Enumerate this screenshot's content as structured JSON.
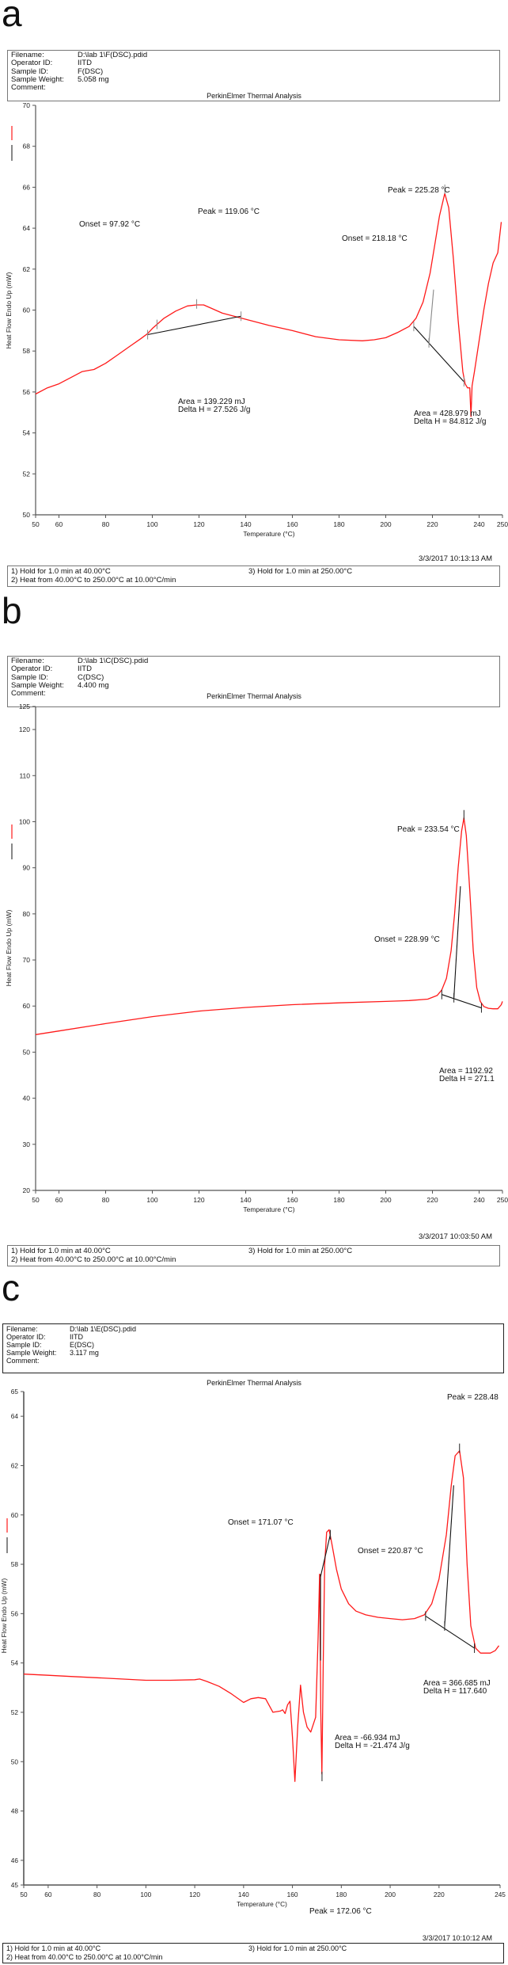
{
  "panels": [
    {
      "letter": "a",
      "info": [
        {
          "key": "Filename:",
          "value": "D:\\lab 1\\F(DSC).pdid"
        },
        {
          "key": "Operator ID:",
          "value": "IITD"
        },
        {
          "key": "Sample ID:",
          "value": "F(DSC)"
        },
        {
          "key": "Sample Weight:",
          "value": "5.058 mg"
        },
        {
          "key": "Comment:",
          "value": ""
        }
      ],
      "title": "PerkinElmer Thermal Analysis",
      "timestamp": "3/3/2017 10:13:13 AM",
      "method": {
        "step1": "1)  Hold for 1.0 min at 40.00°C",
        "step2": "2)  Heat from 40.00°C to 250.00°C at 10.00°C/min",
        "step3": "3)    Hold for 1.0 min at 250.00°C"
      }
    },
    {
      "letter": "b",
      "info": [
        {
          "key": "Filename:",
          "value": "D:\\lab 1\\C(DSC).pdid"
        },
        {
          "key": "Operator ID:",
          "value": "IITD"
        },
        {
          "key": "Sample ID:",
          "value": "C(DSC)"
        },
        {
          "key": "Sample Weight:",
          "value": "4.400 mg"
        },
        {
          "key": "Comment:",
          "value": ""
        }
      ],
      "title": "PerkinElmer Thermal Analysis",
      "timestamp": "3/3/2017 10:03:50 AM",
      "method": {
        "step1": "1)  Hold for 1.0 min at 40.00°C",
        "step2": "2)  Heat from 40.00°C to 250.00°C at 10.00°C/min",
        "step3": "3)    Hold for 1.0 min at 250.00°C"
      }
    },
    {
      "letter": "c",
      "info": [
        {
          "key": "Filename:",
          "value": "D:\\lab 1\\E(DSC).pdid"
        },
        {
          "key": "Operator ID:",
          "value": "IITD"
        },
        {
          "key": "Sample ID:",
          "value": "E(DSC)"
        },
        {
          "key": "Sample Weight:",
          "value": "3.117 mg"
        },
        {
          "key": "Comment:",
          "value": ""
        }
      ],
      "title": "PerkinElmer Thermal Analysis",
      "timestamp": "3/3/2017 10:10:12 AM",
      "method": {
        "step1": "1)  Hold for 1.0 min at 40.00°C",
        "step2": "2)  Heat from 40.00°C to 250.00°C at 10.00°C/min",
        "step3": "3)    Hold for 1.0 min at 250.00°C"
      }
    }
  ],
  "colors": {
    "curve": "#ff1a1a",
    "baseline": "#111111",
    "axis": "#555555",
    "tick_marker": "#888888"
  },
  "chart_data": [
    {
      "type": "line",
      "title": "PerkinElmer Thermal Analysis",
      "xlabel": "Temperature (°C)",
      "ylabel": "Heat Flow Endo Up (mW)",
      "xlim": [
        50,
        250
      ],
      "ylim": [
        50,
        70
      ],
      "xticks": [
        50,
        60,
        80,
        100,
        120,
        140,
        160,
        180,
        200,
        220,
        240,
        250
      ],
      "yticks": [
        50,
        52,
        54,
        56,
        58,
        60,
        62,
        64,
        66,
        68,
        70
      ],
      "series": [
        {
          "name": "Heat Flow",
          "x": [
            50,
            55,
            60,
            65,
            70,
            75,
            80,
            85,
            90,
            95,
            98,
            100,
            105,
            110,
            115,
            119,
            122,
            125,
            130,
            135,
            140,
            145,
            150,
            160,
            170,
            180,
            190,
            195,
            200,
            205,
            210,
            213,
            216,
            219,
            221,
            223,
            225.3,
            227,
            229,
            231,
            233,
            234,
            235,
            236,
            236.5,
            237,
            238,
            240,
            242,
            244,
            246,
            248,
            249.5
          ],
          "values": [
            55.9,
            56.2,
            56.4,
            56.7,
            57.0,
            57.1,
            57.4,
            57.8,
            58.2,
            58.6,
            58.85,
            59.1,
            59.6,
            59.95,
            60.2,
            60.25,
            60.25,
            60.1,
            59.85,
            59.7,
            59.55,
            59.4,
            59.25,
            59.0,
            58.7,
            58.55,
            58.5,
            58.55,
            58.65,
            58.9,
            59.2,
            59.6,
            60.4,
            61.8,
            63.2,
            64.6,
            65.7,
            65.0,
            62.5,
            59.5,
            57.0,
            56.4,
            56.2,
            56.2,
            54.8,
            56.3,
            57.0,
            58.5,
            60.0,
            61.3,
            62.3,
            62.8,
            64.3
          ]
        }
      ],
      "annotations": [
        {
          "text": "Onset = 97.92 °C",
          "x": 97.92
        },
        {
          "text": "Peak = 119.06 °C",
          "x": 119.06
        },
        {
          "text": "Area = 139.229 mJ",
          "line2": "Delta H = 27.526 J/g"
        },
        {
          "text": "Onset = 218.18 °C",
          "x": 218.18
        },
        {
          "text": "Peak = 225.28 °C",
          "x": 225.28
        },
        {
          "text": "Area = 428.979 mJ",
          "line2": "Delta H = 84.812 J/g"
        }
      ],
      "baselines": [
        {
          "from": [
            98,
            58.8
          ],
          "to": [
            138,
            59.7
          ]
        },
        {
          "from": [
            212,
            59.2
          ],
          "to": [
            233.5,
            56.5
          ]
        }
      ],
      "onset_tangents": [
        {
          "from": [
            218.5,
            58.4
          ],
          "to": [
            220.5,
            61.0
          ]
        }
      ],
      "markers": [
        [
          98,
          58.8
        ],
        [
          102,
          59.3
        ],
        [
          119,
          60.3
        ],
        [
          138,
          59.7
        ],
        [
          212,
          59.2
        ],
        [
          218.5,
          58.4
        ],
        [
          225.3,
          65.9
        ],
        [
          233.5,
          56.5
        ]
      ]
    },
    {
      "type": "line",
      "title": "PerkinElmer Thermal Analysis",
      "xlabel": "Temperature (°C)",
      "ylabel": "Heat Flow Endo Up (mW)",
      "xlim": [
        50,
        250
      ],
      "ylim": [
        20,
        125
      ],
      "xticks": [
        50,
        60,
        80,
        100,
        120,
        140,
        160,
        180,
        200,
        220,
        240,
        250
      ],
      "yticks": [
        20,
        30,
        40,
        50,
        60,
        70,
        80,
        90,
        100,
        110,
        120,
        125
      ],
      "series": [
        {
          "name": "Heat Flow",
          "x": [
            50,
            60,
            80,
            100,
            120,
            140,
            160,
            180,
            200,
            210,
            218,
            222,
            224,
            226,
            228,
            229.5,
            231,
            232.5,
            233.5,
            234.5,
            236,
            237.5,
            239,
            240.5,
            242,
            244,
            246,
            248,
            249.5,
            250
          ],
          "values": [
            53.8,
            54.6,
            56.2,
            57.7,
            58.9,
            59.7,
            60.3,
            60.7,
            61.0,
            61.2,
            61.5,
            62.3,
            63.5,
            66.0,
            72.0,
            80.0,
            90.0,
            98.0,
            100.8,
            97.0,
            85.0,
            72.0,
            64.0,
            61.0,
            59.9,
            59.5,
            59.4,
            59.4,
            60.3,
            61.0
          ]
        }
      ],
      "annotations": [
        {
          "text": "Onset = 228.99 °C",
          "x": 228.99
        },
        {
          "text": "Peak = 233.54 °C",
          "x": 233.54
        },
        {
          "text": "Area = 1192.92",
          "line2": "Delta H = 271.1"
        }
      ],
      "baselines": [
        {
          "from": [
            224,
            62.5
          ],
          "to": [
            241,
            59.6
          ]
        }
      ],
      "onset_tangents": [
        {
          "from": [
            229.2,
            61.8
          ],
          "to": [
            232,
            86.0
          ]
        }
      ],
      "markers": [
        [
          224,
          62.5
        ],
        [
          229.2,
          61.8
        ],
        [
          233.5,
          101.5
        ],
        [
          241,
          59.6
        ]
      ]
    },
    {
      "type": "line",
      "title": "PerkinElmer Thermal Analysis",
      "xlabel": "Temperature (°C)",
      "ylabel": "Heat Flow Endo Up (mW)",
      "xlim": [
        50,
        245
      ],
      "ylim": [
        45,
        65
      ],
      "xticks": [
        50,
        60,
        80,
        100,
        120,
        140,
        160,
        180,
        200,
        220,
        245
      ],
      "yticks": [
        45,
        46,
        48,
        50,
        52,
        54,
        56,
        58,
        60,
        62,
        64,
        65
      ],
      "series": [
        {
          "name": "Heat Flow",
          "x": [
            50,
            60,
            70,
            80,
            90,
            100,
            110,
            120,
            122,
            125,
            130,
            135,
            140,
            143,
            146,
            149,
            152,
            155,
            156,
            157,
            158,
            159,
            160,
            161,
            162.2,
            163.3,
            164.5,
            166,
            167.5,
            169.5,
            170.5,
            171.1,
            171.6,
            172.06,
            172.6,
            173.2,
            174,
            175,
            176,
            178,
            180,
            183,
            186,
            190,
            195,
            200,
            205,
            210,
            214,
            217,
            220,
            223,
            225,
            226.6,
            228.4,
            230,
            231.5,
            233,
            235,
            237,
            239,
            241,
            243,
            244.5
          ],
          "values": [
            53.55,
            53.5,
            53.45,
            53.4,
            53.35,
            53.3,
            53.3,
            53.32,
            53.35,
            53.25,
            53.05,
            52.75,
            52.4,
            52.55,
            52.6,
            52.55,
            52.0,
            52.05,
            52.1,
            51.95,
            52.3,
            52.45,
            51.0,
            49.2,
            51.5,
            53.1,
            52.0,
            51.4,
            51.2,
            51.8,
            55.0,
            57.6,
            52.0,
            49.5,
            54.0,
            58.0,
            59.3,
            59.4,
            58.9,
            57.8,
            57.0,
            56.4,
            56.1,
            55.95,
            55.85,
            55.8,
            55.75,
            55.8,
            55.95,
            56.4,
            57.4,
            59.2,
            61.2,
            62.4,
            62.6,
            61.5,
            58.0,
            55.5,
            54.6,
            54.4,
            54.4,
            54.4,
            54.5,
            54.7
          ]
        }
      ],
      "annotations": [
        {
          "text": "Onset = 171.07 °C",
          "x": 171.07
        },
        {
          "text": "Peak = 172.06 °C",
          "x": 172.06
        },
        {
          "text": "Area = -66.934 mJ",
          "line2": "Delta H = -21.474 J/g"
        },
        {
          "text": "Onset = 220.87 °C",
          "x": 220.87
        },
        {
          "text": "Peak = 228.48",
          "x": 228.48
        },
        {
          "text": "Area = 366.685 mJ",
          "line2": "Delta H = 117.640"
        }
      ],
      "baselines": [
        {
          "from": [
            171.5,
            57.5
          ],
          "to": [
            175.5,
            59.2
          ]
        },
        {
          "from": [
            214.5,
            55.9
          ],
          "to": [
            234.5,
            54.6
          ]
        }
      ],
      "onset_tangents": [
        {
          "from": [
            171.5,
            54.1
          ],
          "to": [
            171.5,
            57.6
          ]
        },
        {
          "from": [
            222.3,
            55.5
          ],
          "to": [
            226.0,
            61.2
          ]
        }
      ],
      "markers": [
        [
          175.5,
          59.2
        ],
        [
          172.1,
          49.4
        ],
        [
          214.5,
          55.9
        ],
        [
          222.3,
          55.5
        ],
        [
          228.4,
          62.7
        ],
        [
          234.5,
          54.6
        ]
      ]
    }
  ]
}
